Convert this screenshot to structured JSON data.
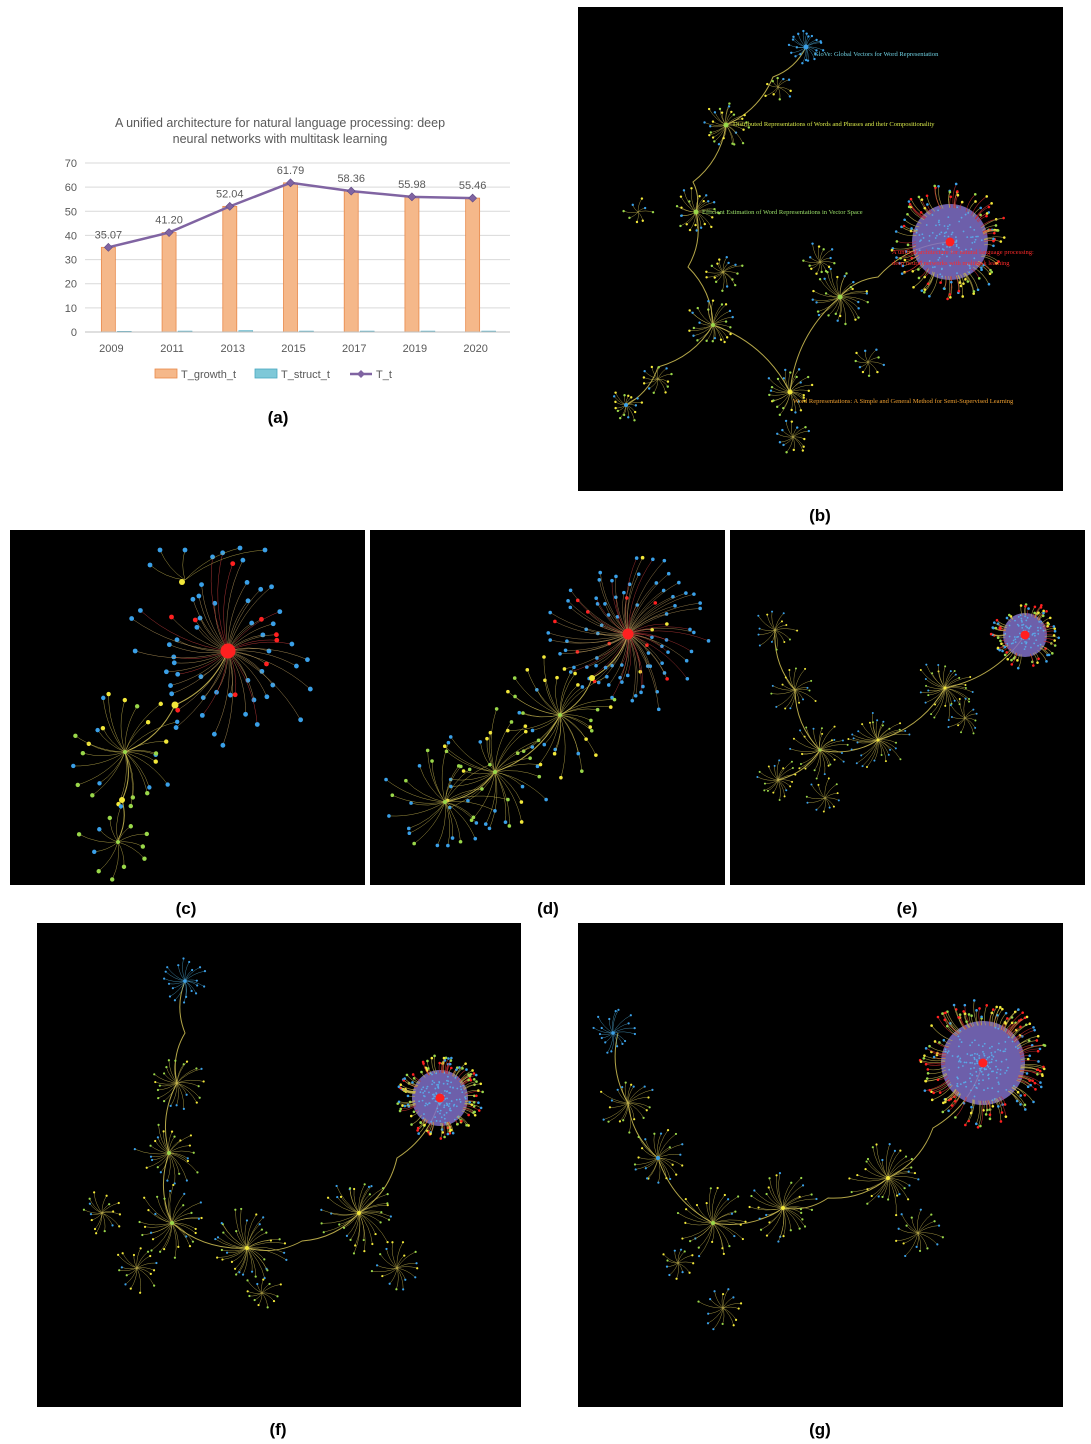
{
  "captions": {
    "a": "(a)",
    "b": "(b)",
    "c": "(c)",
    "d": "(d)",
    "e": "(e)",
    "f": "(f)",
    "g": "(g)"
  },
  "chart_data": {
    "type": "bar",
    "title_line1": "A unified architecture for natural language processing: deep",
    "title_line2": "neural networks with multitask learning",
    "categories": [
      "2009",
      "2011",
      "2013",
      "2015",
      "2017",
      "2019",
      "2020"
    ],
    "ylim": [
      0,
      70
    ],
    "yticks": [
      0,
      10,
      20,
      30,
      40,
      50,
      60,
      70
    ],
    "grid": true,
    "legend_position": "bottom",
    "series": [
      {
        "name": "T_growth_t",
        "kind": "bar",
        "color": "#f5b88a",
        "values": [
          35.07,
          41.2,
          52.04,
          61.79,
          58.36,
          55.98,
          55.46
        ]
      },
      {
        "name": "T_struct_t",
        "kind": "bar",
        "color": "#7ec8d8",
        "values": [
          0.3,
          0.4,
          0.6,
          0.4,
          0.4,
          0.4,
          0.4
        ]
      },
      {
        "name": "T_t",
        "kind": "line",
        "color": "#8064a2",
        "values": [
          35.07,
          41.2,
          52.04,
          61.79,
          58.36,
          55.98,
          55.46
        ]
      }
    ],
    "data_labels": [
      "35.07",
      "41.20",
      "52.04",
      "61.79",
      "58.36",
      "55.98",
      "55.46"
    ]
  },
  "network_b_labels": [
    {
      "text": "GloVe: Global Vectors for Word Representation",
      "color": "#6ecfe0"
    },
    {
      "text": "Distributed Representations of Words and Phrases and their Compositionality",
      "color": "#d8e84a"
    },
    {
      "text": "Efficient Estimation of Word Representations in Vector Space",
      "color": "#9be06a"
    },
    {
      "text": "A unified architecture for natural language processing:",
      "color": "#ff2a2a"
    },
    {
      "text": "deep neural networks with multitask learning",
      "color": "#ff2a2a"
    },
    {
      "text": "Word Representations: A Simple and General Method for Semi-Supervised Learning",
      "color": "#f0a030"
    }
  ],
  "colors": {
    "panel_bg": "#000000",
    "hub_red": "#ff2020",
    "node_blue": "#3aa0e8",
    "node_yellow": "#f2e83a",
    "node_green": "#9ad84a",
    "edge": "#c8b850",
    "hub_purple": "#8070c8"
  }
}
